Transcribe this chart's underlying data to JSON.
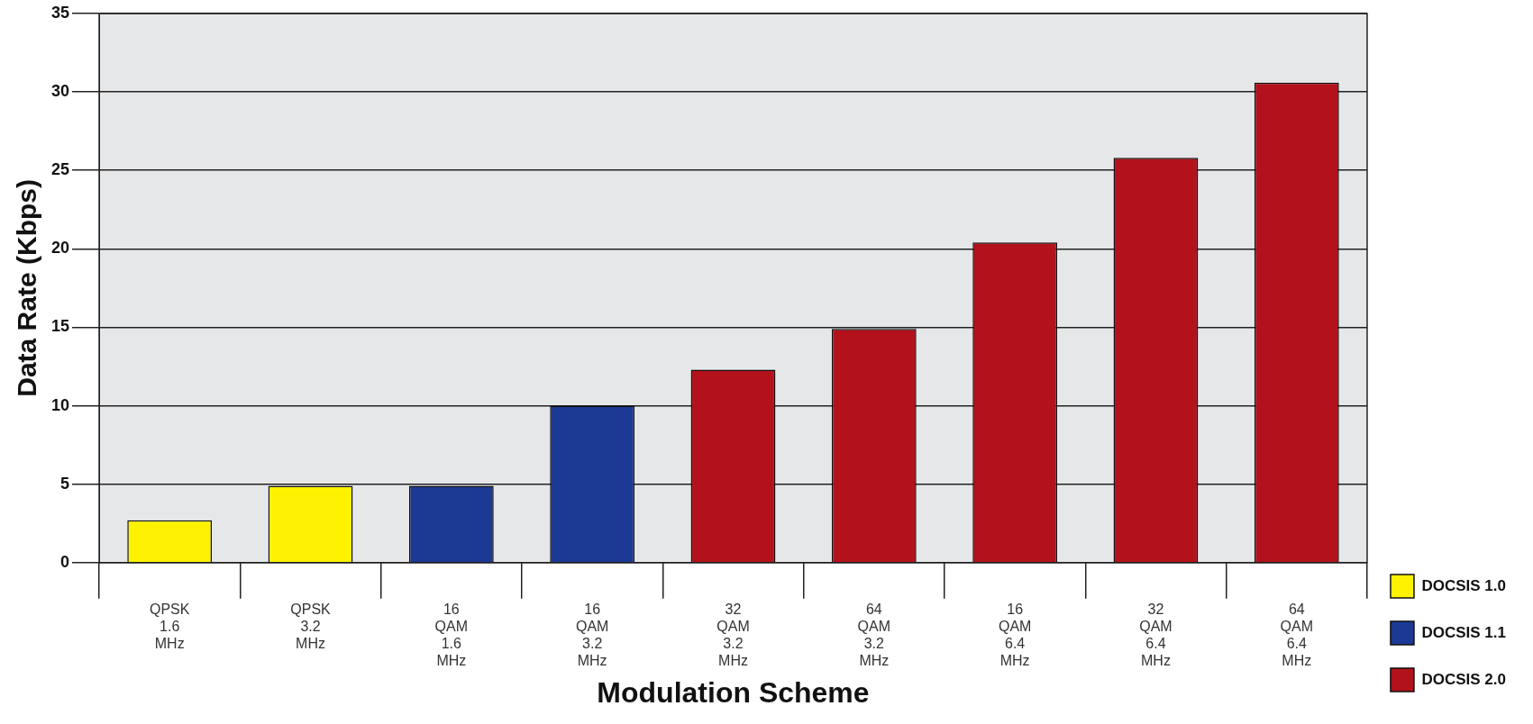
{
  "chart_data": {
    "type": "bar",
    "xlabel": "Modulation Scheme",
    "ylabel": "Data Rate (Kbps)",
    "categories": [
      "QPSK 1.6 MHz",
      "QPSK 3.2 MHz",
      "16 QAM 1.6 MHz",
      "16 QAM 3.2 MHz",
      "32 QAM 3.2 MHz",
      "64 QAM 3.2 MHz",
      "16 QAM 6.4 MHz",
      "32 QAM 6.4 MHz",
      "64 QAM 6.4 MHz"
    ],
    "series": [
      {
        "name": "DOCSIS 1.0",
        "color": "#fff200",
        "values": [
          2.7,
          4.9,
          null,
          null,
          null,
          null,
          null,
          null,
          null
        ]
      },
      {
        "name": "DOCSIS 1.1",
        "color": "#1c3a94",
        "values": [
          null,
          null,
          4.9,
          10,
          null,
          null,
          null,
          null,
          null
        ]
      },
      {
        "name": "DOCSIS 2.0",
        "color": "#b3111b",
        "values": [
          null,
          null,
          null,
          null,
          12.3,
          14.9,
          20.4,
          25.8,
          30.6
        ]
      }
    ],
    "ylim": [
      0,
      35
    ],
    "yticks": [
      0,
      5,
      10,
      15,
      20,
      25,
      30,
      35
    ],
    "grid": "y",
    "legend": "bottom right"
  }
}
